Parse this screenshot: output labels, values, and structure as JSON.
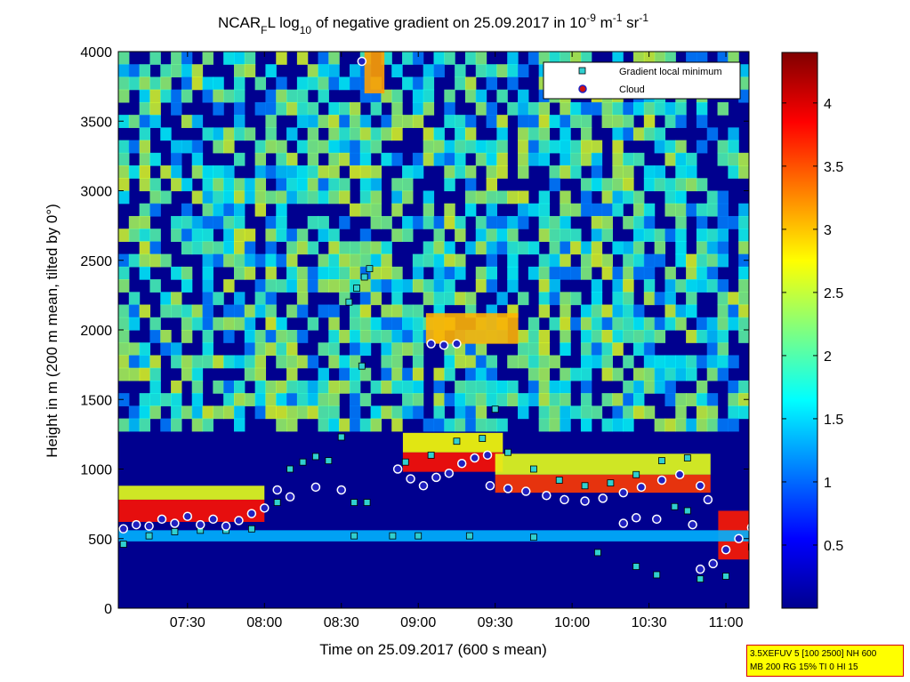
{
  "chart_data": {
    "type": "heatmap",
    "title_parts": {
      "prefix": "NCAR",
      "sub1": "F",
      "mid": "L log",
      "sub2": "10",
      "suffix": " of negative gradient on 25.09.2017 in 10",
      "sup1": "-9",
      "unit1": " m",
      "sup2": "-1",
      "unit2": " sr",
      "sup3": "-1"
    },
    "xlabel": "Time on 25.09.2017 (600 s mean)",
    "ylabel": "Height in m (200 m mean, tilted by 0°)",
    "x_ticks": [
      "07:30",
      "08:00",
      "08:30",
      "09:00",
      "09:30",
      "10:00",
      "10:30",
      "11:00"
    ],
    "y_ticks": [
      "0",
      "500",
      "1000",
      "1500",
      "2000",
      "2500",
      "3000",
      "3500",
      "4000"
    ],
    "colorbar_ticks": [
      "0.5",
      "1",
      "1.5",
      "2",
      "2.5",
      "3",
      "3.5",
      "4"
    ],
    "colorbar_range": [
      0,
      4.4
    ],
    "colormap": "jet",
    "xlim_hours": [
      7.05,
      11.15
    ],
    "ylim": [
      0,
      4000
    ],
    "legend": {
      "position": "top-right",
      "entries": [
        {
          "label": "Gradient local minimum",
          "marker": "square",
          "color": "#30d0d0"
        },
        {
          "label": "Cloud",
          "marker": "circle",
          "color": "#d01010"
        }
      ]
    },
    "series": [
      {
        "name": "Cloud",
        "points": [
          {
            "t": "07:05",
            "h": 570
          },
          {
            "t": "07:10",
            "h": 600
          },
          {
            "t": "07:15",
            "h": 590
          },
          {
            "t": "07:20",
            "h": 640
          },
          {
            "t": "07:25",
            "h": 610
          },
          {
            "t": "07:30",
            "h": 660
          },
          {
            "t": "07:35",
            "h": 600
          },
          {
            "t": "07:40",
            "h": 640
          },
          {
            "t": "07:45",
            "h": 590
          },
          {
            "t": "07:50",
            "h": 630
          },
          {
            "t": "07:55",
            "h": 680
          },
          {
            "t": "08:00",
            "h": 720
          },
          {
            "t": "08:05",
            "h": 850
          },
          {
            "t": "08:10",
            "h": 800
          },
          {
            "t": "08:20",
            "h": 870
          },
          {
            "t": "08:30",
            "h": 850
          },
          {
            "t": "08:38",
            "h": 3930
          },
          {
            "t": "08:52",
            "h": 1000
          },
          {
            "t": "08:57",
            "h": 930
          },
          {
            "t": "09:02",
            "h": 880
          },
          {
            "t": "09:07",
            "h": 940
          },
          {
            "t": "09:12",
            "h": 970
          },
          {
            "t": "09:17",
            "h": 1040
          },
          {
            "t": "09:22",
            "h": 1080
          },
          {
            "t": "09:27",
            "h": 1100
          },
          {
            "t": "09:05",
            "h": 1900
          },
          {
            "t": "09:10",
            "h": 1890
          },
          {
            "t": "09:15",
            "h": 1900
          },
          {
            "t": "09:28",
            "h": 880
          },
          {
            "t": "09:35",
            "h": 860
          },
          {
            "t": "09:42",
            "h": 840
          },
          {
            "t": "09:50",
            "h": 810
          },
          {
            "t": "09:57",
            "h": 780
          },
          {
            "t": "10:05",
            "h": 770
          },
          {
            "t": "10:12",
            "h": 790
          },
          {
            "t": "10:20",
            "h": 830
          },
          {
            "t": "10:27",
            "h": 870
          },
          {
            "t": "10:35",
            "h": 920
          },
          {
            "t": "10:42",
            "h": 960
          },
          {
            "t": "10:50",
            "h": 880
          },
          {
            "t": "10:53",
            "h": 780
          },
          {
            "t": "10:20",
            "h": 610
          },
          {
            "t": "10:25",
            "h": 650
          },
          {
            "t": "10:33",
            "h": 640
          },
          {
            "t": "10:47",
            "h": 600
          },
          {
            "t": "10:50",
            "h": 280
          },
          {
            "t": "10:55",
            "h": 320
          },
          {
            "t": "11:00",
            "h": 420
          },
          {
            "t": "11:05",
            "h": 500
          },
          {
            "t": "11:10",
            "h": 580
          }
        ]
      },
      {
        "name": "Gradient local minimum",
        "points": [
          {
            "t": "07:05",
            "h": 460
          },
          {
            "t": "07:15",
            "h": 520
          },
          {
            "t": "07:25",
            "h": 550
          },
          {
            "t": "07:35",
            "h": 560
          },
          {
            "t": "07:45",
            "h": 560
          },
          {
            "t": "07:55",
            "h": 570
          },
          {
            "t": "08:05",
            "h": 760
          },
          {
            "t": "08:10",
            "h": 1000
          },
          {
            "t": "08:15",
            "h": 1050
          },
          {
            "t": "08:20",
            "h": 1090
          },
          {
            "t": "08:25",
            "h": 1060
          },
          {
            "t": "08:30",
            "h": 1230
          },
          {
            "t": "08:35",
            "h": 760
          },
          {
            "t": "08:40",
            "h": 760
          },
          {
            "t": "08:33",
            "h": 2200
          },
          {
            "t": "08:36",
            "h": 2300
          },
          {
            "t": "08:39",
            "h": 2380
          },
          {
            "t": "08:41",
            "h": 2440
          },
          {
            "t": "08:38",
            "h": 1740
          },
          {
            "t": "08:35",
            "h": 520
          },
          {
            "t": "08:50",
            "h": 520
          },
          {
            "t": "09:00",
            "h": 520
          },
          {
            "t": "09:20",
            "h": 520
          },
          {
            "t": "09:45",
            "h": 510
          },
          {
            "t": "08:55",
            "h": 1050
          },
          {
            "t": "09:05",
            "h": 1100
          },
          {
            "t": "09:15",
            "h": 1200
          },
          {
            "t": "09:25",
            "h": 1220
          },
          {
            "t": "09:35",
            "h": 1120
          },
          {
            "t": "09:45",
            "h": 1000
          },
          {
            "t": "09:55",
            "h": 920
          },
          {
            "t": "10:05",
            "h": 880
          },
          {
            "t": "10:15",
            "h": 900
          },
          {
            "t": "10:25",
            "h": 960
          },
          {
            "t": "10:35",
            "h": 1060
          },
          {
            "t": "10:45",
            "h": 1080
          },
          {
            "t": "09:30",
            "h": 1430
          },
          {
            "t": "10:10",
            "h": 400
          },
          {
            "t": "10:25",
            "h": 300
          },
          {
            "t": "10:33",
            "h": 240
          },
          {
            "t": "10:50",
            "h": 210
          },
          {
            "t": "11:00",
            "h": 230
          },
          {
            "t": "11:10",
            "h": 440
          },
          {
            "t": "10:40",
            "h": 730
          },
          {
            "t": "10:45",
            "h": 700
          }
        ]
      }
    ]
  },
  "info_box": {
    "line1": "3.5XEFUV 5 [100 2500] NH 600",
    "line2": "MB 200 RG 15% TI 0 HI 15"
  }
}
